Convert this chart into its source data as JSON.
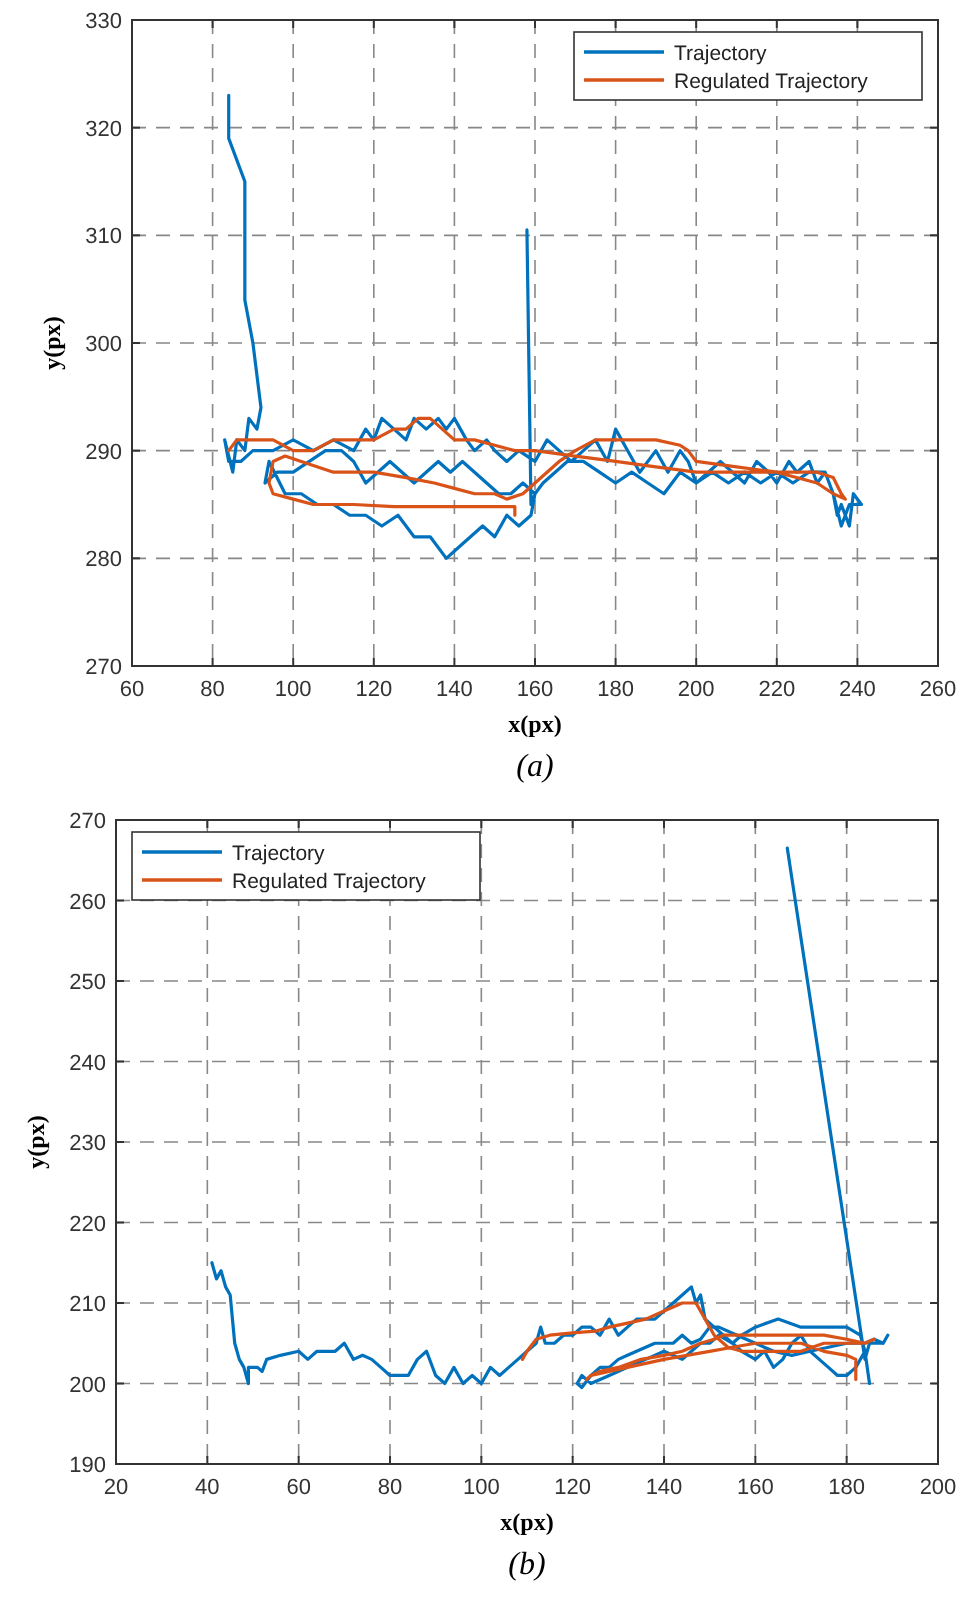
{
  "chart_data": [
    {
      "type": "line",
      "xlabel": "x(px)",
      "ylabel": "y(px)",
      "annotations": [
        "(a)"
      ],
      "xlim": [
        60,
        260
      ],
      "ylim": [
        270,
        330
      ],
      "xticks": [
        60,
        80,
        100,
        120,
        140,
        160,
        180,
        200,
        220,
        240,
        260
      ],
      "yticks": [
        270,
        280,
        290,
        300,
        310,
        320,
        330
      ],
      "grid": true,
      "legend": "top right",
      "line_style": "solid",
      "marker": "none",
      "series": [
        {
          "name": "Trajectory",
          "color": "#0072bd",
          "x": [
            84,
            84,
            88,
            88,
            90,
            92,
            91,
            89,
            88,
            86,
            85,
            83,
            84,
            87,
            90,
            95,
            100,
            105,
            110,
            115,
            118,
            120,
            122,
            125,
            128,
            130,
            133,
            136,
            138,
            140,
            143,
            145,
            148,
            150,
            153,
            156,
            160,
            163,
            166,
            169,
            172,
            175,
            178,
            180,
            183,
            186,
            190,
            193,
            196,
            198,
            200,
            203,
            206,
            209,
            212,
            215,
            218,
            220,
            223,
            225,
            228,
            230,
            232,
            234,
            235,
            236,
            238,
            239,
            241,
            238,
            236,
            234,
            232,
            228,
            224,
            220,
            216,
            212,
            208,
            204,
            200,
            196,
            192,
            188,
            184,
            180,
            176,
            172,
            168,
            165,
            162,
            160,
            157,
            154,
            151,
            148,
            145,
            142,
            139,
            136,
            133,
            130,
            127,
            124,
            121,
            118,
            115,
            112,
            108,
            104,
            100,
            96,
            93,
            94,
            98,
            102,
            106,
            110,
            114,
            118,
            122,
            126,
            130,
            134,
            138,
            141,
            144,
            147,
            150,
            153,
            156,
            159,
            160,
            159,
            158
          ],
          "values": [
            323,
            319,
            315,
            304,
            300,
            294,
            292,
            293,
            290,
            291,
            288,
            291,
            289,
            289,
            290,
            290,
            291,
            290,
            291,
            290,
            292,
            291,
            293,
            292,
            291,
            293,
            292,
            293,
            292,
            293,
            291,
            290,
            291,
            290,
            289,
            290,
            289,
            291,
            290,
            289,
            290,
            291,
            289,
            292,
            290,
            288,
            290,
            288,
            290,
            289,
            287,
            288,
            289,
            288,
            287,
            289,
            288,
            287,
            289,
            288,
            289,
            287,
            288,
            286,
            284,
            285,
            283,
            286,
            285,
            285,
            283,
            286,
            288,
            288,
            287,
            288,
            287,
            288,
            287,
            288,
            287,
            288,
            286,
            287,
            288,
            287,
            288,
            289,
            289,
            288,
            287,
            286,
            287,
            286,
            286,
            287,
            288,
            289,
            288,
            289,
            288,
            287,
            288,
            289,
            288,
            287,
            289,
            290,
            290,
            289,
            288,
            288,
            287,
            289,
            286,
            286,
            285,
            285,
            284,
            284,
            283,
            284,
            282,
            282,
            280,
            281,
            282,
            283,
            282,
            284,
            283,
            284,
            286,
            285,
            310.5
          ]
        },
        {
          "name": "Regulated Trajectory",
          "color": "#d95319",
          "x": [
            84,
            86,
            90,
            95,
            100,
            105,
            110,
            115,
            120,
            125,
            128,
            131,
            134,
            137,
            140,
            145,
            150,
            155,
            160,
            170,
            180,
            190,
            200,
            210,
            220,
            230,
            234,
            236,
            237,
            234,
            230,
            220,
            210,
            200,
            198,
            196,
            190,
            180,
            175,
            170,
            166,
            163,
            160,
            157,
            153,
            150,
            145,
            140,
            135,
            128,
            120,
            110,
            102,
            98,
            95,
            94,
            95,
            100,
            105,
            115,
            125,
            140,
            155,
            155
          ],
          "values": [
            290,
            291,
            291,
            291,
            290,
            290,
            291,
            291,
            291,
            292,
            292,
            293,
            293,
            292,
            291,
            291,
            290.5,
            290,
            290,
            289.5,
            289,
            288.5,
            288,
            288,
            288,
            288,
            287.5,
            286,
            285.5,
            286,
            287,
            288,
            288.5,
            289,
            290,
            290.5,
            291,
            291,
            291,
            290,
            289,
            288,
            287,
            286,
            285.5,
            286,
            286,
            286.5,
            287,
            287.5,
            288,
            288,
            289,
            289.5,
            289,
            287,
            286,
            285.5,
            285,
            285,
            284.8,
            284.8,
            284.8,
            284
          ]
        }
      ]
    },
    {
      "type": "line",
      "xlabel": "x(px)",
      "ylabel": "y(px)",
      "annotations": [
        "(b)"
      ],
      "xlim": [
        20,
        200
      ],
      "ylim": [
        190,
        270
      ],
      "xticks": [
        20,
        40,
        60,
        80,
        100,
        120,
        140,
        160,
        180,
        200
      ],
      "yticks": [
        190,
        200,
        210,
        220,
        230,
        240,
        250,
        260,
        270
      ],
      "grid": true,
      "legend": "top left",
      "line_style": "solid",
      "marker": "none",
      "series": [
        {
          "name": "Trajectory",
          "color": "#0072bd",
          "x": [
            41,
            42,
            43,
            44,
            45,
            46,
            47,
            48,
            49,
            49,
            51,
            52,
            53,
            56,
            60,
            62,
            64,
            66,
            68,
            70,
            72,
            74,
            76,
            78,
            80,
            82,
            84,
            86,
            88,
            90,
            92,
            94,
            96,
            98,
            100,
            102,
            104,
            106,
            108,
            110,
            112,
            113,
            114,
            116,
            118,
            120,
            122,
            124,
            126,
            128,
            130,
            132,
            134,
            136,
            138,
            140,
            142,
            144,
            146,
            147,
            148,
            149,
            151,
            153,
            155,
            157,
            160,
            162,
            164,
            166,
            168,
            170,
            172,
            174,
            176,
            178,
            180,
            182,
            184,
            185,
            184,
            183,
            180,
            175,
            170,
            165,
            160,
            157,
            155,
            152,
            150,
            148,
            146,
            144,
            140,
            136,
            132,
            128,
            126,
            124,
            122,
            121,
            122,
            124,
            126,
            128,
            130,
            132,
            134,
            136,
            138,
            140,
            142,
            144,
            146,
            148,
            150,
            152,
            156,
            160,
            164,
            168,
            172,
            176,
            180,
            184,
            186,
            188,
            189,
            188,
            185,
            184,
            167
          ],
          "values": [
            215,
            213,
            214,
            212,
            211,
            205,
            203,
            202,
            200,
            202,
            202,
            201.5,
            203,
            203.5,
            204,
            203,
            204,
            204,
            204,
            205,
            203,
            203.5,
            203,
            202,
            201,
            201,
            201,
            203,
            204,
            201,
            200,
            202,
            200,
            201,
            200,
            202,
            201,
            202,
            203,
            204,
            205,
            207,
            205,
            205,
            206,
            206,
            207,
            207,
            206,
            208,
            206,
            207,
            208,
            208,
            208,
            209,
            210,
            211,
            212,
            210,
            211,
            208,
            207,
            206,
            205,
            204,
            203,
            204,
            202,
            203,
            205,
            206,
            204,
            203,
            202,
            201,
            201,
            202,
            204,
            200,
            204,
            206,
            207,
            207,
            207,
            208,
            207,
            206,
            205,
            206,
            205,
            205,
            204,
            203,
            204,
            203,
            202,
            201,
            200.5,
            200,
            201,
            200,
            199.5,
            201,
            202,
            202,
            203,
            203.5,
            204,
            204.5,
            205,
            205,
            205,
            206,
            205,
            205.5,
            207,
            207,
            206,
            205,
            204,
            203.5,
            204,
            204.5,
            205,
            205,
            205.5,
            205,
            206,
            205,
            205,
            203,
            266.5
          ]
        },
        {
          "name": "Regulated Trajectory",
          "color": "#d95319",
          "x": [
            109,
            110,
            112,
            115,
            120,
            125,
            128,
            132,
            136,
            140,
            144,
            147,
            149,
            151,
            154,
            157,
            160,
            165,
            170,
            175,
            180,
            184,
            186,
            184,
            180,
            175,
            170,
            165,
            160,
            153,
            151,
            148,
            144,
            140,
            135,
            130,
            126,
            124,
            123,
            124,
            128,
            132,
            136,
            140,
            145,
            150,
            155,
            160,
            165,
            170,
            175,
            180,
            182,
            182
          ],
          "values": [
            203,
            204,
            205.5,
            206,
            206.3,
            206.5,
            207,
            207.5,
            208,
            209,
            210,
            210,
            208,
            206,
            204.5,
            204,
            204,
            204,
            204,
            205,
            205,
            205,
            205.5,
            205,
            205.5,
            206,
            206,
            206,
            206,
            206,
            205.5,
            205,
            204,
            203.5,
            203,
            202,
            201.5,
            201,
            200.5,
            201,
            201.5,
            202,
            202.5,
            203,
            203.5,
            204,
            204.5,
            205,
            205,
            205,
            204,
            203.5,
            203,
            200.5
          ]
        }
      ]
    }
  ]
}
